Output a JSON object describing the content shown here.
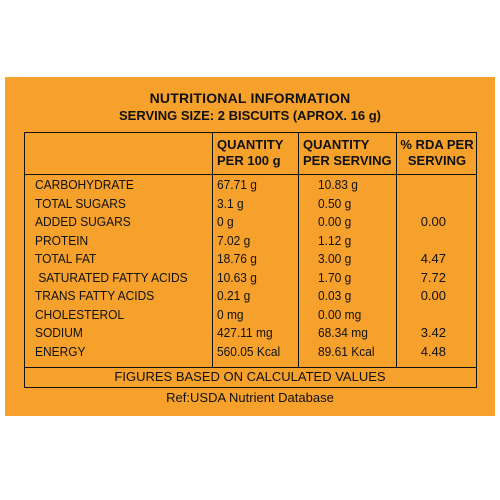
{
  "title": "NUTRITIONAL INFORMATION",
  "serving_size": "SERVING SIZE: 2 BISCUITS (APROX. 16 g)",
  "columns": {
    "qty_100g": [
      "QUANTITY",
      "PER 100 g"
    ],
    "qty_serving": [
      "QUANTITY",
      "PER SERVING"
    ],
    "rda": [
      "% RDA PER",
      "SERVING"
    ]
  },
  "rows": [
    {
      "name": "CARBOHYDRATE",
      "per100": "67.71 g",
      "perServing": "10.83 g",
      "rda": ""
    },
    {
      "name": "TOTAL SUGARS",
      "per100": "3.1 g",
      "perServing": "0.50 g",
      "rda": ""
    },
    {
      "name": "ADDED SUGARS",
      "per100": "0 g",
      "perServing": "0.00 g",
      "rda": "0.00"
    },
    {
      "name": "PROTEIN",
      "per100": "7.02 g",
      "perServing": "1.12 g",
      "rda": ""
    },
    {
      "name": "TOTAL FAT",
      "per100": "18.76 g",
      "perServing": "3.00 g",
      "rda": "4.47"
    },
    {
      "name": " SATURATED FATTY ACIDS",
      "per100": "10.63 g",
      "perServing": "1.70 g",
      "rda": "7.72"
    },
    {
      "name": "TRANS FATTY ACIDS",
      "per100": "0.21 g",
      "perServing": "0.03 g",
      "rda": "0.00"
    },
    {
      "name": "CHOLESTEROL",
      "per100": "0 mg",
      "perServing": "0.00 mg",
      "rda": ""
    },
    {
      "name": "SODIUM",
      "per100": "427.11 mg",
      "perServing": "68.34 mg",
      "rda": "3.42"
    },
    {
      "name": "ENERGY",
      "per100": "560.05 Kcal",
      "perServing": "89.61 Kcal",
      "rda": "4.48"
    }
  ],
  "footer_note": "FIGURES BASED ON CALCULATED VALUES",
  "reference": "Ref:USDA Nutrient Database"
}
